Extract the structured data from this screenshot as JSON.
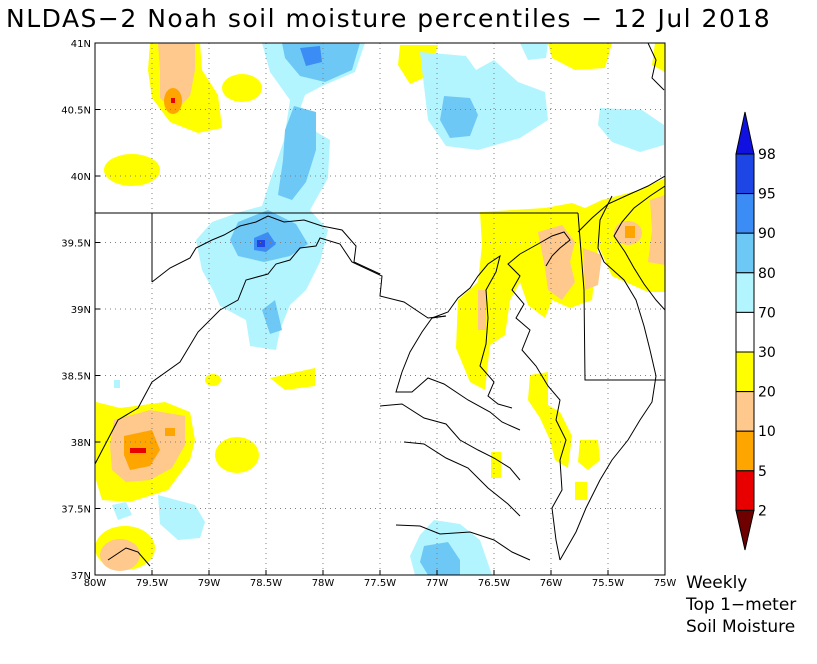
{
  "title": "NLDAS−2 Noah soil moisture percentiles − 12 Jul 2018",
  "map": {
    "extent": {
      "lon_min": -80,
      "lon_max": -75,
      "lat_min": 37,
      "lat_max": 41
    },
    "x_ticks": [
      {
        "lon": -80,
        "label": "80W"
      },
      {
        "lon": -79.5,
        "label": "79.5W"
      },
      {
        "lon": -79,
        "label": "79W"
      },
      {
        "lon": -78.5,
        "label": "78.5W"
      },
      {
        "lon": -78,
        "label": "78W"
      },
      {
        "lon": -77.5,
        "label": "77.5W"
      },
      {
        "lon": -77,
        "label": "77W"
      },
      {
        "lon": -76.5,
        "label": "76.5W"
      },
      {
        "lon": -76,
        "label": "76W"
      },
      {
        "lon": -75.5,
        "label": "75.5W"
      },
      {
        "lon": -75,
        "label": "75W"
      }
    ],
    "y_ticks": [
      {
        "lat": 41,
        "label": "41N"
      },
      {
        "lat": 40.5,
        "label": "40.5N"
      },
      {
        "lat": 40,
        "label": "40N"
      },
      {
        "lat": 39.5,
        "label": "39.5N"
      },
      {
        "lat": 39,
        "label": "39N"
      },
      {
        "lat": 38.5,
        "label": "38.5N"
      },
      {
        "lat": 38,
        "label": "38N"
      },
      {
        "lat": 37.5,
        "label": "37.5N"
      },
      {
        "lat": 37,
        "label": "37N"
      }
    ],
    "grid": true,
    "colors": {
      "cat_2_5": "#e80000",
      "cat_5_10": "#ffa500",
      "cat_10_20": "#ffc88c",
      "cat_20_30": "#ffff00",
      "cat_70_80": "#b3f5ff",
      "cat_80_90": "#6ec8f5",
      "cat_90_95": "#3c8cf5",
      "cat_95_98": "#1e46e6"
    }
  },
  "legend": {
    "labels": [
      "98",
      "95",
      "90",
      "80",
      "70",
      "30",
      "20",
      "10",
      "5",
      "2"
    ],
    "segments": [
      {
        "from": "98",
        "to": "max",
        "color": "#1010e0"
      },
      {
        "from": "95",
        "to": "98",
        "color": "#1e46e6"
      },
      {
        "from": "90",
        "to": "95",
        "color": "#3c8cf5"
      },
      {
        "from": "80",
        "to": "90",
        "color": "#6ec8f5"
      },
      {
        "from": "70",
        "to": "80",
        "color": "#b3f5ff"
      },
      {
        "from": "30",
        "to": "70",
        "color": "#ffffff"
      },
      {
        "from": "20",
        "to": "30",
        "color": "#ffff00"
      },
      {
        "from": "10",
        "to": "20",
        "color": "#ffc88c"
      },
      {
        "from": "5",
        "to": "10",
        "color": "#ffa500"
      },
      {
        "from": "2",
        "to": "5",
        "color": "#e80000"
      },
      {
        "from": "min",
        "to": "2",
        "color": "#6e0000"
      }
    ]
  },
  "caption": [
    "Weekly",
    "Top 1−meter",
    "Soil Moisture"
  ]
}
